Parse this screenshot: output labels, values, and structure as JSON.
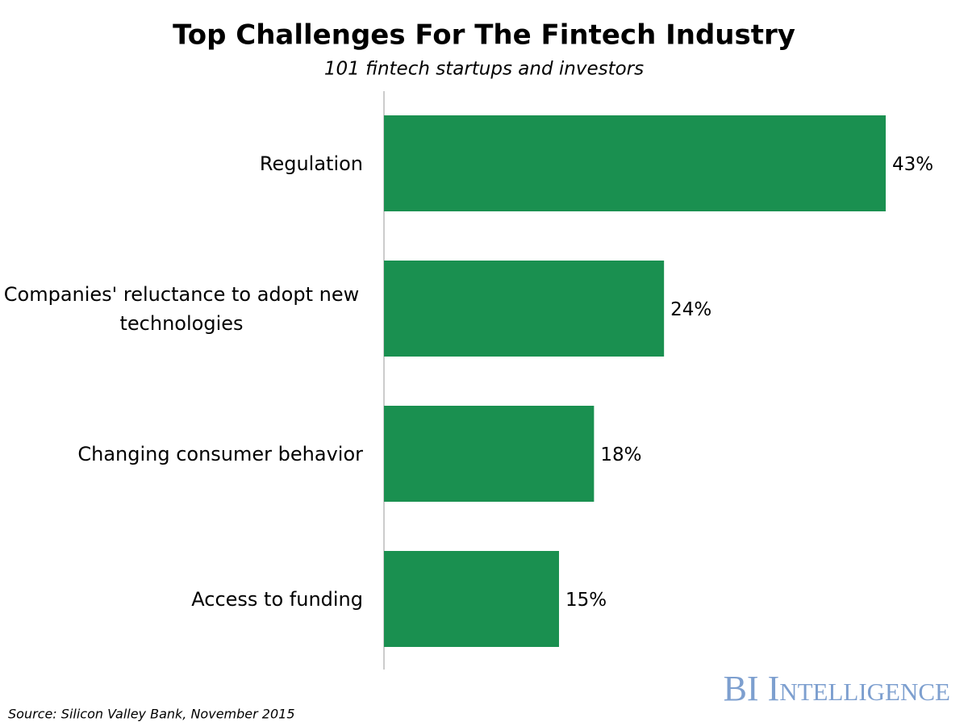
{
  "chart_data": {
    "type": "bar",
    "orientation": "horizontal",
    "title": "Top Challenges For The Fintech Industry",
    "subtitle": "101 fintech startups and investors",
    "categories": [
      "Regulation",
      "Companies' reluctance to adopt new technologies",
      "Changing consumer behavior",
      "Access to funding"
    ],
    "values": [
      43,
      24,
      18,
      15
    ],
    "value_labels": [
      "43%",
      "24%",
      "18%",
      "15%"
    ],
    "color": "#1a9050",
    "source": "Source: Silicon Valley Bank, November 2015",
    "logo": "BI Intelligence"
  }
}
